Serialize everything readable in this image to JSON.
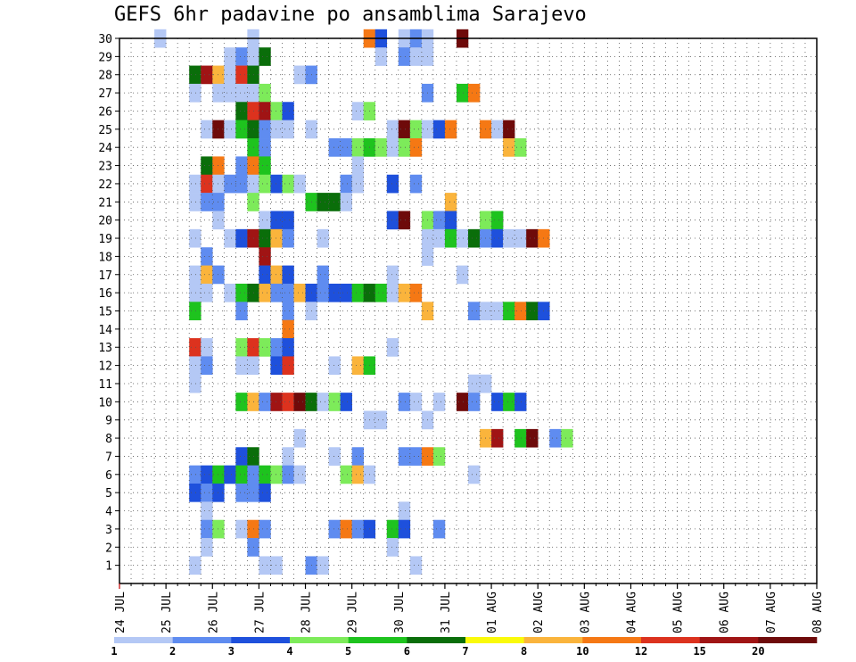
{
  "chart_data": {
    "type": "heatmap",
    "title": "GEFS 6hr padavine po ansamblima Sarajevo",
    "xlabel": "",
    "ylabel": "",
    "x_ticks": [
      "24 JUL",
      "25 JUL",
      "26 JUL",
      "27 JUL",
      "28 JUL",
      "29 JUL",
      "30 JUL",
      "31 JUL",
      "01 AUG",
      "02 AUG",
      "03 AUG",
      "04 AUG",
      "05 AUG",
      "06 AUG",
      "07 AUG",
      "08 AUG"
    ],
    "y_ticks": [
      "1",
      "2",
      "3",
      "4",
      "5",
      "6",
      "7",
      "8",
      "9",
      "10",
      "11",
      "12",
      "13",
      "14",
      "15",
      "16",
      "17",
      "18",
      "19",
      "20",
      "21",
      "22",
      "23",
      "24",
      "25",
      "26",
      "27",
      "28",
      "29",
      "30"
    ],
    "steps_per_day": 4,
    "ylim": [
      0,
      30
    ],
    "grid": true,
    "legend": {
      "placement": "bottom",
      "labels": [
        "1",
        "2",
        "3",
        "4",
        "5",
        "6",
        "7",
        "8",
        "10",
        "12",
        "15",
        "20"
      ],
      "colors": [
        "#b4c8f5",
        "#5f8cf0",
        "#1e50dc",
        "#7deb5a",
        "#1ec31e",
        "#0a6e0a",
        "#fafa0a",
        "#fab43c",
        "#f57814",
        "#dc321e",
        "#a01414",
        "#6e0a0a"
      ]
    },
    "cells": [
      [
        3,
        30,
        1
      ],
      [
        11,
        30,
        1
      ],
      [
        21,
        30,
        10
      ],
      [
        22,
        30,
        3
      ],
      [
        24,
        30,
        1
      ],
      [
        25,
        30,
        2
      ],
      [
        26,
        30,
        1
      ],
      [
        29,
        30,
        20
      ],
      [
        9,
        29,
        1
      ],
      [
        10,
        29,
        2
      ],
      [
        11,
        29,
        1
      ],
      [
        12,
        29,
        6
      ],
      [
        22,
        29,
        1
      ],
      [
        24,
        29,
        2
      ],
      [
        25,
        29,
        1
      ],
      [
        26,
        29,
        1
      ],
      [
        6,
        28,
        6
      ],
      [
        7,
        28,
        15
      ],
      [
        8,
        28,
        8
      ],
      [
        9,
        28,
        1
      ],
      [
        10,
        28,
        12
      ],
      [
        11,
        28,
        6
      ],
      [
        15,
        28,
        1
      ],
      [
        16,
        28,
        2
      ],
      [
        6,
        27,
        1
      ],
      [
        8,
        27,
        1
      ],
      [
        9,
        27,
        1
      ],
      [
        10,
        27,
        1
      ],
      [
        11,
        27,
        1
      ],
      [
        12,
        27,
        4
      ],
      [
        26,
        27,
        2
      ],
      [
        29,
        27,
        5
      ],
      [
        30,
        27,
        10
      ],
      [
        10,
        26,
        6
      ],
      [
        11,
        26,
        12
      ],
      [
        12,
        26,
        15
      ],
      [
        13,
        26,
        4
      ],
      [
        14,
        26,
        3
      ],
      [
        20,
        26,
        1
      ],
      [
        21,
        26,
        4
      ],
      [
        7,
        25,
        1
      ],
      [
        8,
        25,
        20
      ],
      [
        9,
        25,
        1
      ],
      [
        10,
        25,
        5
      ],
      [
        11,
        25,
        6
      ],
      [
        12,
        25,
        2
      ],
      [
        13,
        25,
        1
      ],
      [
        14,
        25,
        1
      ],
      [
        16,
        25,
        1
      ],
      [
        23,
        25,
        1
      ],
      [
        24,
        25,
        20
      ],
      [
        25,
        25,
        4
      ],
      [
        26,
        25,
        1
      ],
      [
        27,
        25,
        3
      ],
      [
        28,
        25,
        10
      ],
      [
        31,
        25,
        10
      ],
      [
        32,
        25,
        1
      ],
      [
        33,
        25,
        20
      ],
      [
        11,
        24,
        5
      ],
      [
        12,
        24,
        2
      ],
      [
        18,
        24,
        2
      ],
      [
        19,
        24,
        2
      ],
      [
        20,
        24,
        4
      ],
      [
        21,
        24,
        5
      ],
      [
        22,
        24,
        4
      ],
      [
        23,
        24,
        1
      ],
      [
        24,
        24,
        4
      ],
      [
        25,
        24,
        10
      ],
      [
        33,
        24,
        8
      ],
      [
        34,
        24,
        4
      ],
      [
        7,
        23,
        6
      ],
      [
        8,
        23,
        10
      ],
      [
        10,
        23,
        2
      ],
      [
        11,
        23,
        10
      ],
      [
        12,
        23,
        5
      ],
      [
        20,
        23,
        1
      ],
      [
        6,
        22,
        1
      ],
      [
        7,
        22,
        12
      ],
      [
        8,
        22,
        1
      ],
      [
        9,
        22,
        2
      ],
      [
        10,
        22,
        2
      ],
      [
        11,
        22,
        1
      ],
      [
        12,
        22,
        4
      ],
      [
        13,
        22,
        3
      ],
      [
        14,
        22,
        4
      ],
      [
        15,
        22,
        1
      ],
      [
        19,
        22,
        2
      ],
      [
        20,
        22,
        1
      ],
      [
        23,
        22,
        3
      ],
      [
        25,
        22,
        2
      ],
      [
        6,
        21,
        1
      ],
      [
        7,
        21,
        2
      ],
      [
        8,
        21,
        2
      ],
      [
        11,
        21,
        4
      ],
      [
        16,
        21,
        5
      ],
      [
        17,
        21,
        6
      ],
      [
        18,
        21,
        6
      ],
      [
        19,
        21,
        1
      ],
      [
        28,
        21,
        8
      ],
      [
        8,
        20,
        1
      ],
      [
        12,
        20,
        1
      ],
      [
        13,
        20,
        3
      ],
      [
        14,
        20,
        3
      ],
      [
        23,
        20,
        3
      ],
      [
        24,
        20,
        20
      ],
      [
        26,
        20,
        4
      ],
      [
        27,
        20,
        2
      ],
      [
        28,
        20,
        3
      ],
      [
        31,
        20,
        4
      ],
      [
        32,
        20,
        5
      ],
      [
        6,
        19,
        1
      ],
      [
        9,
        19,
        1
      ],
      [
        10,
        19,
        3
      ],
      [
        11,
        19,
        15
      ],
      [
        12,
        19,
        6
      ],
      [
        13,
        19,
        8
      ],
      [
        14,
        19,
        2
      ],
      [
        17,
        19,
        1
      ],
      [
        26,
        19,
        1
      ],
      [
        27,
        19,
        1
      ],
      [
        28,
        19,
        5
      ],
      [
        29,
        19,
        1
      ],
      [
        30,
        19,
        6
      ],
      [
        31,
        19,
        2
      ],
      [
        32,
        19,
        3
      ],
      [
        33,
        19,
        1
      ],
      [
        34,
        19,
        1
      ],
      [
        35,
        19,
        20
      ],
      [
        36,
        19,
        10
      ],
      [
        7,
        18,
        2
      ],
      [
        12,
        18,
        15
      ],
      [
        26,
        18,
        1
      ],
      [
        6,
        17,
        1
      ],
      [
        7,
        17,
        8
      ],
      [
        8,
        17,
        2
      ],
      [
        12,
        17,
        3
      ],
      [
        13,
        17,
        8
      ],
      [
        14,
        17,
        3
      ],
      [
        17,
        17,
        2
      ],
      [
        23,
        17,
        1
      ],
      [
        29,
        17,
        1
      ],
      [
        6,
        16,
        1
      ],
      [
        7,
        16,
        1
      ],
      [
        9,
        16,
        1
      ],
      [
        10,
        16,
        5
      ],
      [
        11,
        16,
        6
      ],
      [
        12,
        16,
        8
      ],
      [
        13,
        16,
        2
      ],
      [
        14,
        16,
        2
      ],
      [
        15,
        16,
        8
      ],
      [
        16,
        16,
        3
      ],
      [
        17,
        16,
        2
      ],
      [
        18,
        16,
        3
      ],
      [
        19,
        16,
        3
      ],
      [
        20,
        16,
        5
      ],
      [
        21,
        16,
        6
      ],
      [
        22,
        16,
        5
      ],
      [
        23,
        16,
        1
      ],
      [
        24,
        16,
        8
      ],
      [
        25,
        16,
        10
      ],
      [
        6,
        15,
        5
      ],
      [
        10,
        15,
        2
      ],
      [
        14,
        15,
        2
      ],
      [
        16,
        15,
        1
      ],
      [
        26,
        15,
        8
      ],
      [
        30,
        15,
        2
      ],
      [
        31,
        15,
        1
      ],
      [
        32,
        15,
        1
      ],
      [
        33,
        15,
        5
      ],
      [
        34,
        15,
        10
      ],
      [
        35,
        15,
        6
      ],
      [
        36,
        15,
        3
      ],
      [
        14,
        14,
        10
      ],
      [
        6,
        13,
        12
      ],
      [
        7,
        13,
        1
      ],
      [
        10,
        13,
        4
      ],
      [
        11,
        13,
        12
      ],
      [
        12,
        13,
        4
      ],
      [
        13,
        13,
        2
      ],
      [
        14,
        13,
        3
      ],
      [
        23,
        13,
        1
      ],
      [
        6,
        12,
        1
      ],
      [
        7,
        12,
        2
      ],
      [
        10,
        12,
        1
      ],
      [
        11,
        12,
        1
      ],
      [
        13,
        12,
        3
      ],
      [
        14,
        12,
        12
      ],
      [
        18,
        12,
        1
      ],
      [
        20,
        12,
        8
      ],
      [
        21,
        12,
        5
      ],
      [
        6,
        11,
        1
      ],
      [
        30,
        11,
        1
      ],
      [
        31,
        11,
        1
      ],
      [
        10,
        10,
        5
      ],
      [
        11,
        10,
        8
      ],
      [
        12,
        10,
        2
      ],
      [
        13,
        10,
        15
      ],
      [
        14,
        10,
        12
      ],
      [
        15,
        10,
        20
      ],
      [
        16,
        10,
        6
      ],
      [
        17,
        10,
        1
      ],
      [
        18,
        10,
        4
      ],
      [
        19,
        10,
        3
      ],
      [
        24,
        10,
        2
      ],
      [
        25,
        10,
        1
      ],
      [
        27,
        10,
        1
      ],
      [
        29,
        10,
        20
      ],
      [
        30,
        10,
        2
      ],
      [
        32,
        10,
        3
      ],
      [
        33,
        10,
        5
      ],
      [
        34,
        10,
        3
      ],
      [
        21,
        9,
        1
      ],
      [
        22,
        9,
        1
      ],
      [
        26,
        9,
        1
      ],
      [
        15,
        8,
        1
      ],
      [
        31,
        8,
        8
      ],
      [
        32,
        8,
        15
      ],
      [
        34,
        8,
        5
      ],
      [
        35,
        8,
        20
      ],
      [
        37,
        8,
        2
      ],
      [
        38,
        8,
        4
      ],
      [
        10,
        7,
        3
      ],
      [
        11,
        7,
        6
      ],
      [
        14,
        7,
        1
      ],
      [
        18,
        7,
        1
      ],
      [
        20,
        7,
        2
      ],
      [
        24,
        7,
        2
      ],
      [
        25,
        7,
        2
      ],
      [
        26,
        7,
        10
      ],
      [
        27,
        7,
        4
      ],
      [
        6,
        6,
        2
      ],
      [
        7,
        6,
        3
      ],
      [
        8,
        6,
        5
      ],
      [
        9,
        6,
        3
      ],
      [
        10,
        6,
        5
      ],
      [
        11,
        6,
        2
      ],
      [
        12,
        6,
        5
      ],
      [
        13,
        6,
        4
      ],
      [
        14,
        6,
        2
      ],
      [
        15,
        6,
        1
      ],
      [
        19,
        6,
        4
      ],
      [
        20,
        6,
        8
      ],
      [
        21,
        6,
        1
      ],
      [
        30,
        6,
        1
      ],
      [
        6,
        5,
        3
      ],
      [
        7,
        5,
        2
      ],
      [
        8,
        5,
        3
      ],
      [
        10,
        5,
        2
      ],
      [
        11,
        5,
        2
      ],
      [
        12,
        5,
        3
      ],
      [
        7,
        4,
        1
      ],
      [
        24,
        4,
        1
      ],
      [
        7,
        3,
        2
      ],
      [
        8,
        3,
        4
      ],
      [
        10,
        3,
        1
      ],
      [
        11,
        3,
        10
      ],
      [
        12,
        3,
        2
      ],
      [
        18,
        3,
        2
      ],
      [
        19,
        3,
        10
      ],
      [
        20,
        3,
        2
      ],
      [
        21,
        3,
        3
      ],
      [
        23,
        3,
        5
      ],
      [
        24,
        3,
        3
      ],
      [
        27,
        3,
        2
      ],
      [
        7,
        2,
        1
      ],
      [
        11,
        2,
        2
      ],
      [
        23,
        2,
        1
      ],
      [
        6,
        1,
        1
      ],
      [
        12,
        1,
        1
      ],
      [
        13,
        1,
        1
      ],
      [
        16,
        1,
        2
      ],
      [
        17,
        1,
        1
      ],
      [
        25,
        1,
        1
      ]
    ]
  }
}
